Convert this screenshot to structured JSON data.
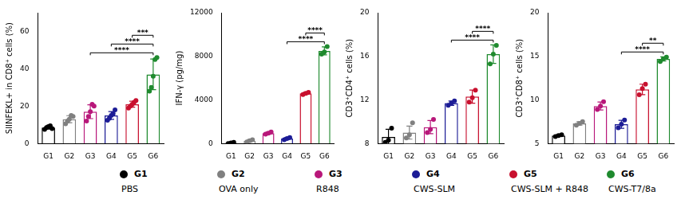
{
  "chart_data": [
    {
      "type": "bar",
      "y_label": "SIINFEKL+ in CD8⁺ cells (%)",
      "categories": [
        "G1",
        "G2",
        "G3",
        "G4",
        "G5",
        "G6"
      ],
      "values": [
        8.5,
        13,
        17,
        15,
        21,
        37
      ],
      "error_bars": [
        0.8,
        1.9,
        3.7,
        2.1,
        1.6,
        8.2
      ],
      "points": [
        [
          7.5,
          8.5,
          9,
          9.5,
          8
        ],
        [
          10.5,
          12,
          13,
          15,
          14.5
        ],
        [
          12,
          14.5,
          17,
          21,
          20
        ],
        [
          12.5,
          13.5,
          15,
          16,
          18
        ],
        [
          19,
          20,
          21,
          22,
          23
        ],
        [
          28,
          30,
          36,
          45,
          46
        ]
      ],
      "colors": [
        "#000000",
        "#808080",
        "#b8177a",
        "#1c1c96",
        "#c8102e",
        "#1f8a2e"
      ],
      "ylim": [
        0,
        70
      ],
      "yticks": [
        0,
        20,
        40,
        60
      ],
      "grid": false,
      "significance": [
        {
          "from": "G3",
          "to": "G6",
          "label": "****"
        },
        {
          "from": "G4",
          "to": "G6",
          "label": "****"
        },
        {
          "from": "G5",
          "to": "G6",
          "label": "***"
        }
      ]
    },
    {
      "type": "bar",
      "y_label": "IFN-γ (pg/mg)",
      "categories": [
        "G1",
        "G2",
        "G3",
        "G4",
        "G5",
        "G6"
      ],
      "values": [
        50,
        250,
        950,
        450,
        4600,
        8500
      ],
      "error_bars": [
        50,
        100,
        100,
        100,
        100,
        360
      ],
      "points": [
        [
          0,
          50,
          100
        ],
        [
          150,
          250,
          350
        ],
        [
          850,
          950,
          1050
        ],
        [
          350,
          450,
          550
        ],
        [
          4500,
          4600,
          4700
        ],
        [
          8200,
          8400,
          8900
        ]
      ],
      "colors": [
        "#000000",
        "#808080",
        "#b8177a",
        "#1c1c96",
        "#c8102e",
        "#1f8a2e"
      ],
      "ylim": [
        0,
        12000
      ],
      "yticks": [
        0,
        4000,
        8000,
        12000
      ],
      "grid": false,
      "significance": [
        {
          "from": "G4",
          "to": "G6",
          "label": "****"
        },
        {
          "from": "G5",
          "to": "G6",
          "label": "****"
        }
      ]
    },
    {
      "type": "bar",
      "y_label": "CD3⁺CD4⁺ cells (%)",
      "categories": [
        "G1",
        "G2",
        "G3",
        "G4",
        "G5",
        "G6"
      ],
      "values": [
        8.6,
        9.0,
        9.5,
        11.7,
        12.3,
        16.2
      ],
      "error_bars": [
        0.7,
        0.6,
        0.6,
        0.2,
        0.6,
        0.85
      ],
      "points": [
        [
          8.1,
          8.3,
          9.4
        ],
        [
          8.5,
          8.8,
          9.9
        ],
        [
          9.0,
          9.3,
          10.2
        ],
        [
          11.5,
          11.7,
          11.9
        ],
        [
          11.8,
          12.2,
          12.9
        ],
        [
          15.3,
          16.2,
          17.0
        ]
      ],
      "colors": [
        "#000000",
        "#808080",
        "#b8177a",
        "#1c1c96",
        "#c8102e",
        "#1f8a2e"
      ],
      "ylim": [
        8,
        20
      ],
      "yticks": [
        8,
        12,
        16,
        20
      ],
      "grid": false,
      "significance": [
        {
          "from": "G4",
          "to": "G6",
          "label": "****"
        },
        {
          "from": "G5",
          "to": "G6",
          "label": "****"
        }
      ]
    },
    {
      "type": "bar",
      "y_label": "CD3⁺CD8⁺ cells (%)",
      "categories": [
        "G1",
        "G2",
        "G3",
        "G4",
        "G5",
        "G6"
      ],
      "values": [
        5.9,
        7.3,
        9.3,
        7.2,
        11.2,
        14.7
      ],
      "error_bars": [
        0.1,
        0.2,
        0.45,
        0.45,
        0.6,
        0.25
      ],
      "points": [
        [
          5.8,
          5.9,
          6.0
        ],
        [
          7.1,
          7.3,
          7.5
        ],
        [
          8.9,
          9.3,
          9.8
        ],
        [
          6.8,
          7.2,
          7.7
        ],
        [
          10.6,
          11.3,
          11.8
        ],
        [
          14.4,
          14.7,
          14.9
        ]
      ],
      "colors": [
        "#000000",
        "#808080",
        "#b8177a",
        "#1c1c96",
        "#c8102e",
        "#1f8a2e"
      ],
      "ylim": [
        5,
        20
      ],
      "yticks": [
        5,
        10,
        15,
        20
      ],
      "grid": false,
      "significance": [
        {
          "from": "G4",
          "to": "G6",
          "label": "****"
        },
        {
          "from": "G5",
          "to": "G6",
          "label": "**"
        }
      ]
    }
  ],
  "legend_items": [
    {
      "name": "G1",
      "label": "PBS",
      "color": "#000000"
    },
    {
      "name": "G2",
      "label": "OVA only",
      "color": "#808080"
    },
    {
      "name": "G3",
      "label": "R848",
      "color": "#b8177a"
    },
    {
      "name": "G4",
      "label": "CWS-SLM",
      "color": "#1c1c96"
    },
    {
      "name": "G5",
      "label": "CWS-SLM + R848",
      "color": "#c8102e"
    },
    {
      "name": "G6",
      "label": "CWS-T7/8a",
      "color": "#1f8a2e"
    }
  ]
}
